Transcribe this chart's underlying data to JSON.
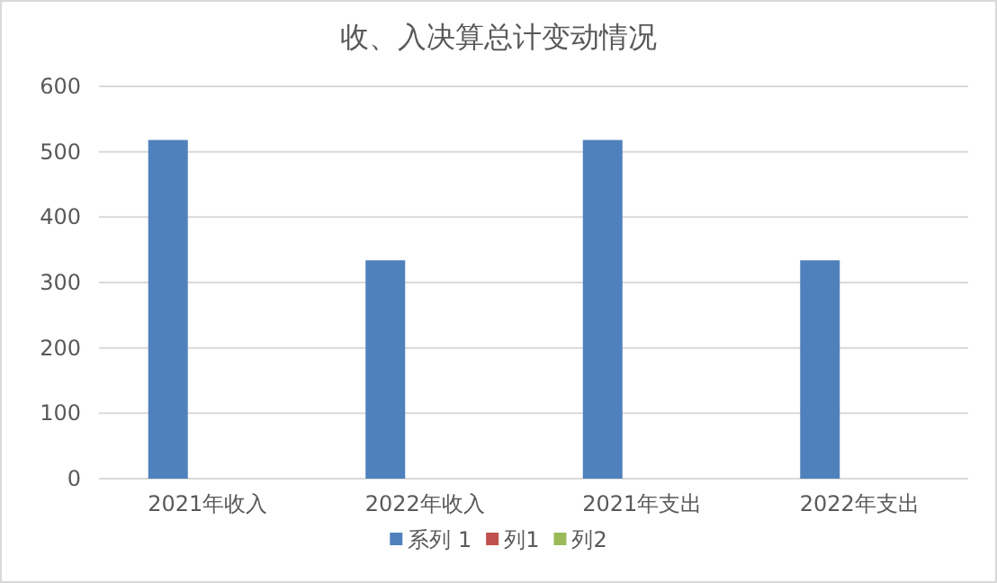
{
  "chart_data": {
    "type": "bar",
    "title": "收、入决算总计变动情况",
    "categories": [
      "2021年收入",
      "2022年收入",
      "2021年支出",
      "2022年支出"
    ],
    "series": [
      {
        "name": "系列 1",
        "color": "#4f81bd",
        "values": [
          518,
          334,
          518,
          334
        ]
      },
      {
        "name": "列1",
        "color": "#c0504d",
        "values": [
          null,
          null,
          null,
          null
        ]
      },
      {
        "name": "列2",
        "color": "#9bbb59",
        "values": [
          null,
          null,
          null,
          null
        ]
      }
    ],
    "ylim": [
      0,
      600
    ],
    "yticks": [
      0,
      100,
      200,
      300,
      400,
      500,
      600
    ],
    "grid": "y",
    "legend": "bottom"
  }
}
